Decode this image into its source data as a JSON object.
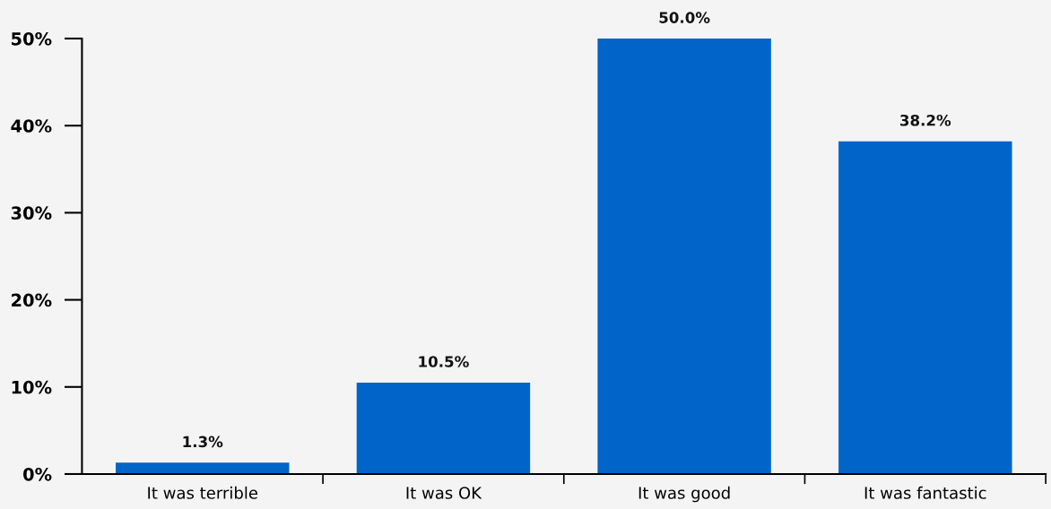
{
  "chart_data": {
    "type": "bar",
    "categories": [
      "It was terrible",
      "It was OK",
      "It was good",
      "It was fantastic"
    ],
    "values": [
      1.3,
      10.5,
      50.0,
      38.2
    ],
    "value_labels": [
      "1.3%",
      "10.5%",
      "50.0%",
      "38.2%"
    ],
    "color": "#0064c8",
    "ylim": [
      0,
      50
    ],
    "yticks": [
      {
        "value": 0,
        "label": "0%"
      },
      {
        "value": 10,
        "label": "10%"
      },
      {
        "value": 20,
        "label": "20%"
      },
      {
        "value": 30,
        "label": "30%"
      },
      {
        "value": 40,
        "label": "40%"
      },
      {
        "value": 50,
        "label": "50%"
      }
    ],
    "grid": false,
    "legend": false
  }
}
